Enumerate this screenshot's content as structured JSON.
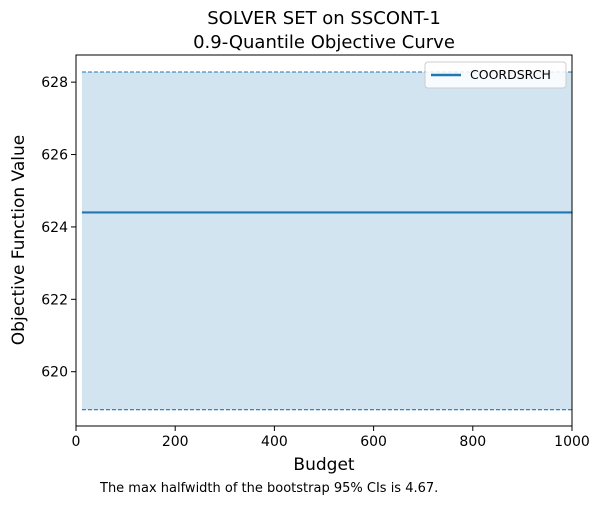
{
  "chart_data": {
    "type": "line",
    "title_line1": "SOLVER SET on SSCONT-1",
    "title_line2": "0.9-Quantile Objective Curve",
    "xlabel": "Budget",
    "ylabel": "Objective Function Value",
    "xlim": [
      0,
      1000
    ],
    "ylim": [
      618.5,
      628.75
    ],
    "x_ticks": [
      0,
      200,
      400,
      600,
      800,
      1000
    ],
    "x_tick_labels": [
      "0",
      "200",
      "400",
      "600",
      "800",
      "1000"
    ],
    "y_ticks": [
      620,
      622,
      624,
      626,
      628
    ],
    "y_tick_labels": [
      "620",
      "622",
      "624",
      "626",
      "628"
    ],
    "grid": false,
    "legend_position": "top-right",
    "series": [
      {
        "name": "COORDSRCH",
        "color": "#1f77b4",
        "x": [
          12,
          1000
        ],
        "y": [
          624.4,
          624.4
        ],
        "ci_lower": 618.95,
        "ci_upper": 628.28
      }
    ],
    "footnote": "The max halfwidth of the bootstrap 95% CIs is 4.67."
  }
}
